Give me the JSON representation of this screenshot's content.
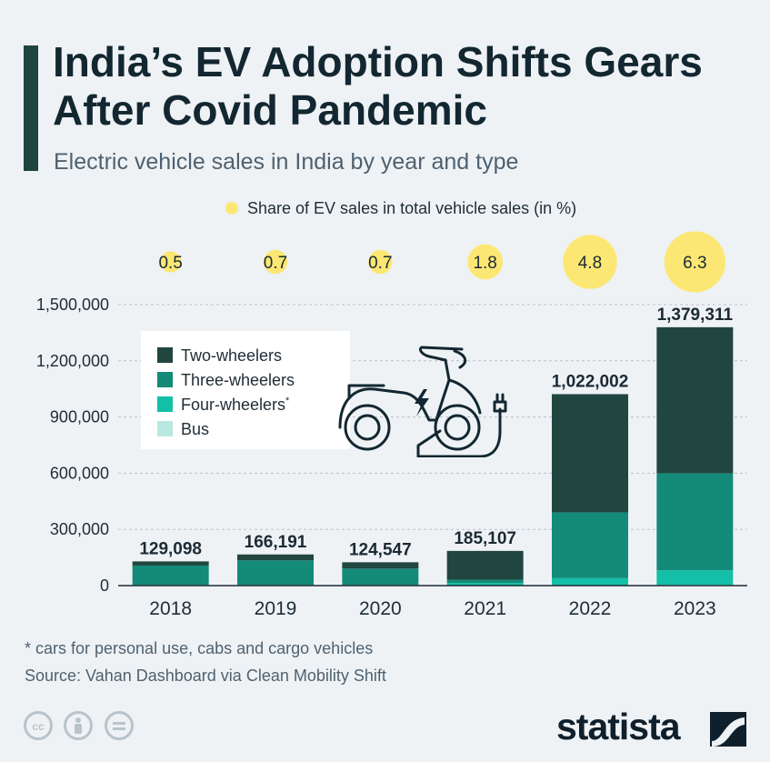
{
  "title": "India’s EV Adoption Shifts Gears After Covid Pandemic",
  "subtitle": "Electric vehicle sales in India by year and type",
  "share_legend": "Share of EV sales in total vehicle sales (in %)",
  "legend": {
    "two": "Two-wheelers",
    "three": "Three-wheelers",
    "four": "Four-wheelers",
    "four_mark": "*",
    "bus": "Bus"
  },
  "footnote": "* cars for personal use, cabs and cargo vehicles",
  "source": "Source: Vahan Dashboard via Clean Mobility Shift",
  "brand": "statista",
  "colors": {
    "two_wheelers": "#21463f",
    "three_wheelers": "#148a78",
    "four_wheelers": "#13c0a7",
    "bus": "#b8e8e1",
    "share_bubble": "#fde774",
    "accent": "#1e4540"
  },
  "icons": [
    "scooter-icon",
    "plug-icon",
    "lightning-icon",
    "creative-commons-icon",
    "attribution-icon",
    "no-derivatives-icon",
    "statista-logo-icon"
  ],
  "chart_data": {
    "type": "bar",
    "stacked": true,
    "categories": [
      "2018",
      "2019",
      "2020",
      "2021",
      "2022",
      "2023"
    ],
    "series": [
      {
        "name": "Bus",
        "values": [
          400,
          600,
          500,
          1200,
          1900,
          3600
        ]
      },
      {
        "name": "Four-wheelers",
        "values": [
          3600,
          2400,
          3500,
          12800,
          38200,
          78300
        ]
      },
      {
        "name": "Three-wheelers",
        "values": [
          103000,
          132000,
          87000,
          17000,
          351000,
          518000
        ]
      },
      {
        "name": "Two-wheelers",
        "values": [
          22098,
          31191,
          33547,
          154107,
          630902,
          779411
        ]
      }
    ],
    "totals": [
      129098,
      166191,
      124547,
      185107,
      1022002,
      1379311
    ],
    "total_labels": [
      "129,098",
      "166,191",
      "124,547",
      "185,107",
      "1,022,002",
      "1,379,311"
    ],
    "share": [
      0.5,
      0.7,
      0.7,
      1.8,
      4.8,
      6.3
    ],
    "share_labels": [
      "0.5",
      "0.7",
      "0.7",
      "1.8",
      "4.8",
      "6.3"
    ],
    "y_ticks": [
      0,
      300000,
      600000,
      900000,
      1200000,
      1500000
    ],
    "y_tick_labels": [
      "0",
      "300,000",
      "600,000",
      "900,000",
      "1,200,000",
      "1,500,000"
    ],
    "ylim": [
      0,
      1500000
    ],
    "grid": true,
    "legend_position": "upper-left"
  }
}
